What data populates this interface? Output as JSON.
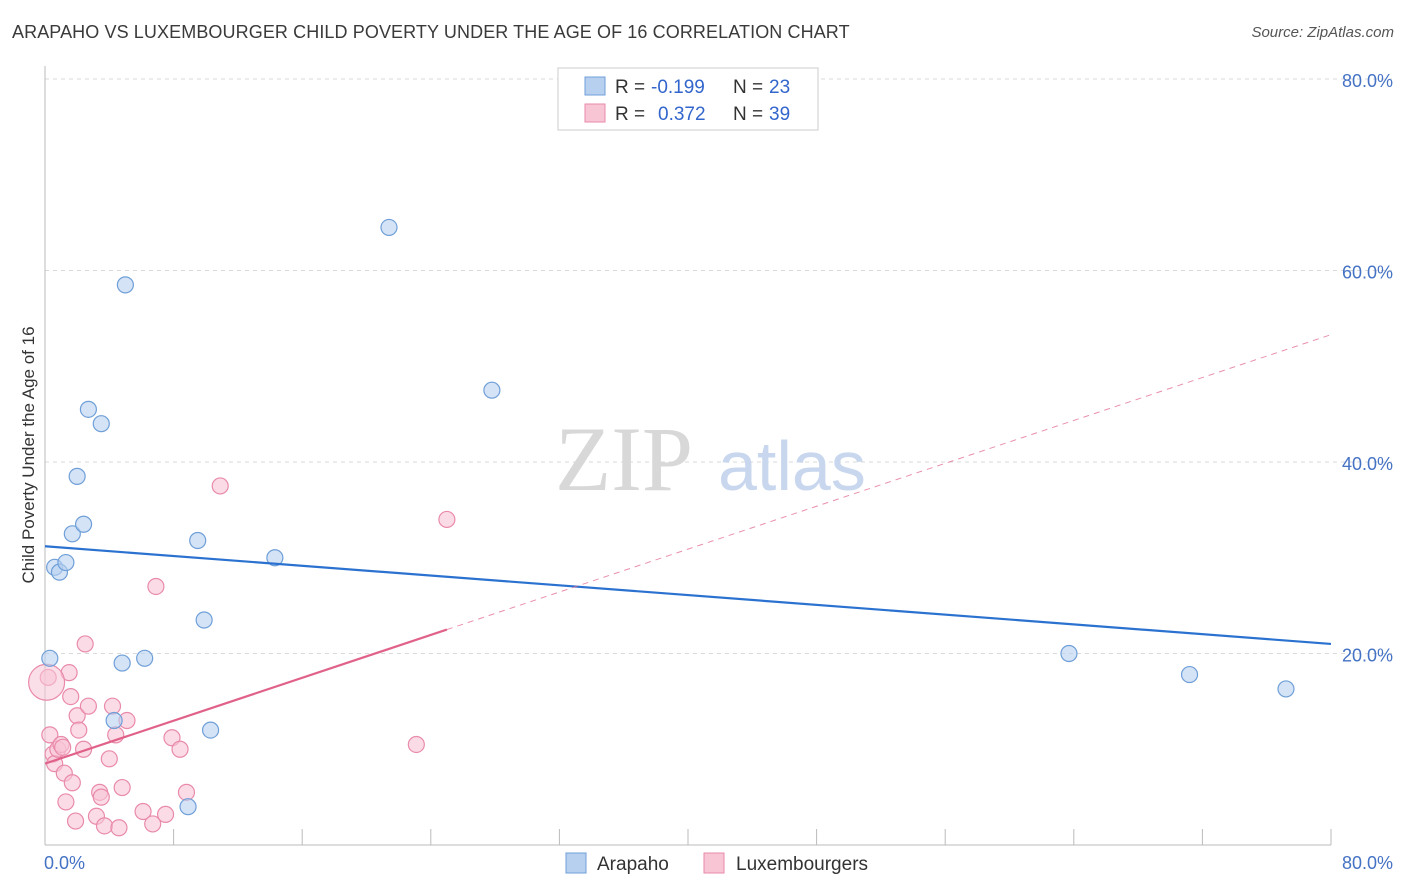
{
  "title": "ARAPAHO VS LUXEMBOURGER CHILD POVERTY UNDER THE AGE OF 16 CORRELATION CHART",
  "source": "Source: ZipAtlas.com",
  "watermark": {
    "zip": "ZIP",
    "atlas": "atlas"
  },
  "colors": {
    "arapaho_fill": "#b8d0f0",
    "arapaho_stroke": "#6f9fd8",
    "arapaho_line": "#2b72d0",
    "lux_fill": "#f8c5d5",
    "lux_stroke": "#e98aaa",
    "lux_line": "#e0618a",
    "grid": "#d9d9d9",
    "axis_text": "#4472c4"
  },
  "legend": {
    "rows": [
      {
        "r_label": "R =",
        "r_value": "-0.199",
        "n_label": "N =",
        "n_value": "23"
      },
      {
        "r_label": "R =",
        "r_value": "0.372",
        "n_label": "N =",
        "n_value": "39"
      }
    ]
  },
  "chart_data": {
    "type": "scatter",
    "title": "ARAPAHO VS LUXEMBOURGER CHILD POVERTY UNDER THE AGE OF 16 CORRELATION CHART",
    "xlabel": "",
    "ylabel": "Child Poverty Under the Age of 16",
    "xlim": [
      0,
      80
    ],
    "ylim": [
      0,
      80
    ],
    "x_tick_labels": [
      "0.0%",
      "80.0%"
    ],
    "y_ticks": [
      20,
      40,
      60,
      80
    ],
    "y_tick_labels": [
      "20.0%",
      "40.0%",
      "60.0%",
      "80.0%"
    ],
    "grid": true,
    "series": [
      {
        "name": "Arapaho",
        "r": -0.199,
        "n": 23,
        "points": [
          [
            0.3,
            19.5
          ],
          [
            0.6,
            29.0
          ],
          [
            0.9,
            28.5
          ],
          [
            1.3,
            29.5
          ],
          [
            1.7,
            32.5
          ],
          [
            2.0,
            38.5
          ],
          [
            2.4,
            33.5
          ],
          [
            2.7,
            45.5
          ],
          [
            3.5,
            44.0
          ],
          [
            4.8,
            19.0
          ],
          [
            5.0,
            58.5
          ],
          [
            4.3,
            13.0
          ],
          [
            6.2,
            19.5
          ],
          [
            9.5,
            31.8
          ],
          [
            9.9,
            23.5
          ],
          [
            10.3,
            12.0
          ],
          [
            8.9,
            4.0
          ],
          [
            14.3,
            30.0
          ],
          [
            21.4,
            64.5
          ],
          [
            27.8,
            47.5
          ],
          [
            63.7,
            20.0
          ],
          [
            71.2,
            17.8
          ],
          [
            77.2,
            16.3
          ]
        ],
        "trend": {
          "x": [
            0,
            80
          ],
          "y": [
            31.2,
            21.0
          ],
          "dashed_extension": false
        }
      },
      {
        "name": "Luxembourgers",
        "r": 0.372,
        "n": 39,
        "points": [
          [
            0.2,
            17.5
          ],
          [
            0.3,
            11.5
          ],
          [
            0.5,
            9.5
          ],
          [
            0.6,
            8.5
          ],
          [
            0.8,
            10.0
          ],
          [
            1.0,
            10.5
          ],
          [
            1.1,
            10.2
          ],
          [
            1.2,
            7.5
          ],
          [
            1.3,
            4.5
          ],
          [
            1.5,
            18.0
          ],
          [
            1.6,
            15.5
          ],
          [
            1.7,
            6.5
          ],
          [
            1.9,
            2.5
          ],
          [
            2.0,
            13.5
          ],
          [
            2.1,
            12.0
          ],
          [
            2.4,
            10.0
          ],
          [
            2.5,
            21.0
          ],
          [
            2.7,
            14.5
          ],
          [
            3.2,
            3.0
          ],
          [
            3.4,
            5.5
          ],
          [
            3.5,
            5.0
          ],
          [
            3.7,
            2.0
          ],
          [
            4.0,
            9.0
          ],
          [
            4.2,
            14.5
          ],
          [
            4.4,
            11.5
          ],
          [
            4.6,
            1.8
          ],
          [
            4.8,
            6.0
          ],
          [
            5.1,
            13.0
          ],
          [
            6.1,
            3.5
          ],
          [
            6.7,
            2.2
          ],
          [
            6.9,
            27.0
          ],
          [
            7.5,
            3.2
          ],
          [
            7.9,
            11.2
          ],
          [
            8.4,
            10.0
          ],
          [
            8.8,
            5.5
          ],
          [
            10.9,
            37.5
          ],
          [
            23.1,
            10.5
          ],
          [
            25.0,
            34.0
          ],
          [
            0.1,
            17.0
          ]
        ],
        "trend": {
          "x": [
            0,
            25
          ],
          "y": [
            8.5,
            22.5
          ],
          "extension": {
            "x": [
              25,
              80
            ],
            "y": [
              22.5,
              53.3
            ]
          }
        }
      }
    ]
  }
}
